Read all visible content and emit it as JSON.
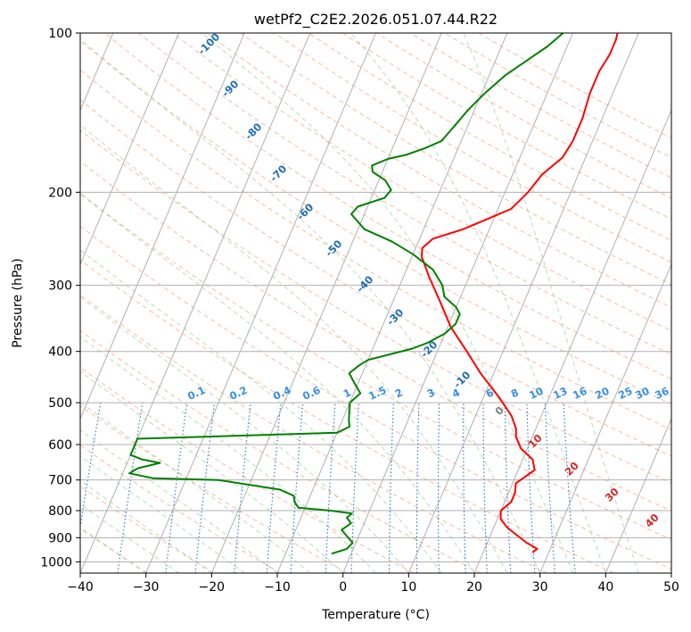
{
  "chart_data": {
    "type": "line",
    "title": "wetPf2_C2E2.2026.051.07.44.R22",
    "xlabel": "Temperature (°C)",
    "ylabel": "Pressure (hPa)",
    "xlim": [
      -40,
      50
    ],
    "ylim": [
      1050,
      100
    ],
    "y_scale": "log",
    "x_ticks": [
      -40,
      -30,
      -20,
      -10,
      0,
      10,
      20,
      30,
      40,
      50
    ],
    "x_tick_labels": [
      "−40",
      "−30",
      "−20",
      "−10",
      "0",
      "10",
      "20",
      "30",
      "40",
      "50"
    ],
    "y_ticks": [
      100,
      200,
      300,
      400,
      500,
      600,
      700,
      800,
      900,
      1000
    ],
    "y_tick_labels": [
      "100",
      "200",
      "300",
      "400",
      "500",
      "600",
      "700",
      "800",
      "900",
      "1000"
    ],
    "grid": true,
    "isotherm_labels": [
      "-100",
      "-90",
      "-80",
      "-70",
      "-60",
      "-50",
      "-40",
      "-30",
      "-20",
      "-10",
      "0",
      "10",
      "20",
      "30",
      "40"
    ],
    "mixing_ratio_labels": [
      "0.1",
      "0.2",
      "0.4",
      "0.6",
      "1",
      "1.5",
      "2",
      "3",
      "4",
      "6",
      "8",
      "10",
      "13",
      "16",
      "20",
      "25",
      "30",
      "36"
    ],
    "series": [
      {
        "color": "#ff0000",
        "points": [
          [
            27.5,
            960
          ],
          [
            28,
            945
          ],
          [
            26,
            920
          ],
          [
            24,
            890
          ],
          [
            22,
            860
          ],
          [
            20.5,
            830
          ],
          [
            20,
            800
          ],
          [
            21,
            770
          ],
          [
            21,
            740
          ],
          [
            20.5,
            710
          ],
          [
            21.5,
            690
          ],
          [
            22.5,
            670
          ],
          [
            21.5,
            640
          ],
          [
            19,
            610
          ],
          [
            17.5,
            580
          ],
          [
            17,
            560
          ],
          [
            15.5,
            530
          ],
          [
            12.5,
            490
          ],
          [
            8,
            440
          ],
          [
            4.5,
            400
          ],
          [
            0.5,
            360
          ],
          [
            -3,
            320
          ],
          [
            -6,
            290
          ],
          [
            -8.5,
            265
          ],
          [
            -9,
            255
          ],
          [
            -8,
            245
          ],
          [
            -4,
            235
          ],
          [
            -1,
            225
          ],
          [
            2,
            215
          ],
          [
            3.5,
            200
          ],
          [
            4.5,
            185
          ],
          [
            6.5,
            172
          ],
          [
            7,
            160
          ],
          [
            7,
            145
          ],
          [
            6.5,
            130
          ],
          [
            6.5,
            118
          ],
          [
            7,
            110
          ],
          [
            7,
            103
          ],
          [
            6.8,
            100
          ]
        ]
      },
      {
        "color": "#008000",
        "points": [
          [
            -3,
            965
          ],
          [
            -1,
            945
          ],
          [
            -0.5,
            920
          ],
          [
            -2,
            890
          ],
          [
            -3,
            870
          ],
          [
            -2,
            845
          ],
          [
            -3,
            825
          ],
          [
            -2.5,
            810
          ],
          [
            -6,
            800
          ],
          [
            -11,
            790
          ],
          [
            -12,
            770
          ],
          [
            -12.5,
            750
          ],
          [
            -15,
            730
          ],
          [
            -25,
            700
          ],
          [
            -35,
            695
          ],
          [
            -39,
            680
          ],
          [
            -38,
            665
          ],
          [
            -35,
            650
          ],
          [
            -38,
            640
          ],
          [
            -40,
            628
          ],
          [
            -40,
            615
          ],
          [
            -40,
            605
          ],
          [
            -40,
            585
          ],
          [
            -10,
            570
          ],
          [
            -8.5,
            555
          ],
          [
            -9,
            540
          ],
          [
            -9.5,
            520
          ],
          [
            -10,
            500
          ],
          [
            -9,
            480
          ],
          [
            -10.5,
            460
          ],
          [
            -12,
            440
          ],
          [
            -11,
            425
          ],
          [
            -10,
            415
          ],
          [
            -7,
            405
          ],
          [
            -4,
            395
          ],
          [
            -2,
            385
          ],
          [
            0,
            370
          ],
          [
            1,
            355
          ],
          [
            1,
            340
          ],
          [
            0,
            330
          ],
          [
            -2.5,
            315
          ],
          [
            -3.5,
            300
          ],
          [
            -6,
            280
          ],
          [
            -10,
            262
          ],
          [
            -14,
            248
          ],
          [
            -19,
            235
          ],
          [
            -22,
            220
          ],
          [
            -21.5,
            213
          ],
          [
            -18,
            205
          ],
          [
            -17.5,
            198
          ],
          [
            -19,
            190
          ],
          [
            -21.5,
            183
          ],
          [
            -22,
            178
          ],
          [
            -20,
            173
          ],
          [
            -17.5,
            170
          ],
          [
            -15,
            165
          ],
          [
            -13,
            160
          ],
          [
            -12,
            150
          ],
          [
            -11,
            140
          ],
          [
            -9.5,
            130
          ],
          [
            -7.5,
            120
          ],
          [
            -5,
            112
          ],
          [
            -3,
            106
          ],
          [
            -1.5,
            100
          ]
        ]
      }
    ]
  }
}
